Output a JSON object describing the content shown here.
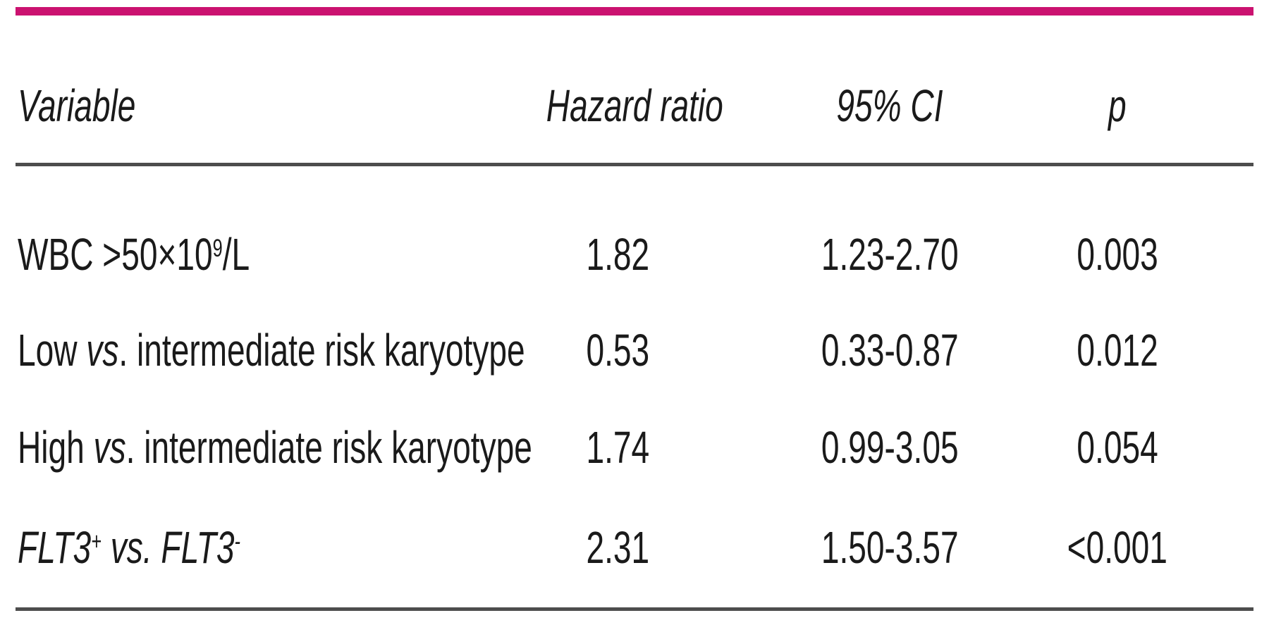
{
  "colors": {
    "accent": "#cb1270",
    "rule": "#4d4d4d",
    "text": "#1a1a1a"
  },
  "table": {
    "headers": {
      "variable": "Variable",
      "hazard_ratio": "Hazard ratio",
      "ci": "95% CI",
      "p": "p"
    },
    "rows": [
      {
        "variable_segments": [
          {
            "t": "WBC >50×10"
          },
          {
            "t": "9",
            "style": "sup"
          },
          {
            "t": "/L"
          }
        ],
        "variable_text": "WBC >50×10⁹/L",
        "hazard_ratio": "1.82",
        "ci": "1.23-2.70",
        "p": "0.003"
      },
      {
        "variable_segments": [
          {
            "t": "Low "
          },
          {
            "t": "vs",
            "style": "i"
          },
          {
            "t": ". intermediate risk karyotype"
          }
        ],
        "variable_text": "Low vs. intermediate risk karyotype",
        "hazard_ratio": "0.53",
        "ci": "0.33-0.87",
        "p": "0.012"
      },
      {
        "variable_segments": [
          {
            "t": "High "
          },
          {
            "t": "vs",
            "style": "i"
          },
          {
            "t": ". intermediate risk karyotype"
          }
        ],
        "variable_text": "High vs. intermediate risk karyotype",
        "hazard_ratio": "1.74",
        "ci": "0.99-3.05",
        "p": "0.054"
      },
      {
        "variable_segments": [
          {
            "t": "FLT3",
            "style": "i"
          },
          {
            "t": "+",
            "style": "isup"
          },
          {
            "t": " vs. ",
            "style": "i"
          },
          {
            "t": "FLT3",
            "style": "i"
          },
          {
            "t": "-",
            "style": "isup"
          }
        ],
        "variable_text": "FLT3+ vs. FLT3-",
        "hazard_ratio": "2.31",
        "ci": "1.50-3.57",
        "p": "<0.001"
      }
    ]
  }
}
